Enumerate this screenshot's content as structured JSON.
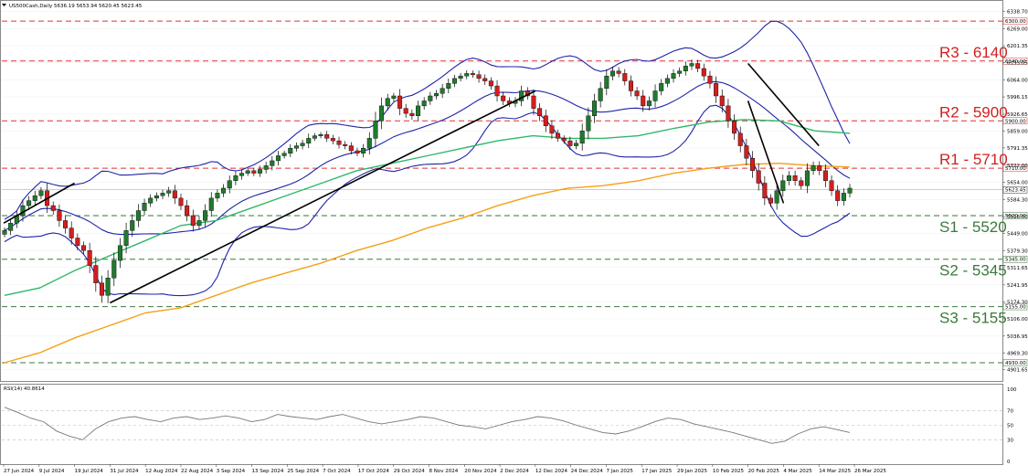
{
  "header": {
    "symbol_info": "US500Cash,Daily  5636.19 5653.94 5620.45 5623.45"
  },
  "rsi_panel": {
    "label": "RSI(14) 40.8614",
    "ticks": [
      "100",
      "70",
      "50",
      "30",
      "0"
    ]
  },
  "colors": {
    "bull": "#1f7a2e",
    "bear": "#d11f1f",
    "bollinger": "#1f24a8",
    "ma_100": "#2eb86a",
    "ma_200": "#f5a018",
    "resistance_line": "#e03030",
    "support_line": "#3a7a3a",
    "resistance_text": "#d11f1f",
    "support_text": "#3a7a3a",
    "trendline": "#000000"
  },
  "chart_data": {
    "type": "candlestick",
    "title": "US500Cash,Daily",
    "timeframe": "Daily",
    "last_ohlc": {
      "open": 5636.19,
      "high": 5653.94,
      "low": 5620.45,
      "close": 5623.45
    },
    "last_price_label": "5623.45",
    "ylim": [
      4875,
      6370
    ],
    "y_ticks": [
      "6338.70",
      "6269.00",
      "6201.35",
      "6133.05",
      "6064.00",
      "5996.15",
      "5926.65",
      "5859.00",
      "5791.35",
      "5722.00",
      "5654.00",
      "5584.30",
      "5516.00",
      "5449.00",
      "5379.30",
      "5311.65",
      "5241.95",
      "5174.30",
      "5106.00",
      "5036.95",
      "4969.30",
      "4901.65"
    ],
    "x_ticks": [
      "27 Jun 2024",
      "9 Jul 2024",
      "19 Jul 2024",
      "31 Jul 2024",
      "12 Aug 2024",
      "22 Aug 2024",
      "3 Sep 2024",
      "13 Sep 2024",
      "25 Sep 2024",
      "7 Oct 2024",
      "17 Oct 2024",
      "29 Oct 2024",
      "8 Nov 2024",
      "20 Nov 2024",
      "2 Dec 2024",
      "12 Dec 2024",
      "24 Dec 2024",
      "7 Jan 2025",
      "17 Jan 2025",
      "29 Jan 2025",
      "10 Feb 2025",
      "20 Feb 2025",
      "4 Mar 2025",
      "14 Mar 2025",
      "26 Mar 2025"
    ],
    "levels": [
      {
        "name": "R3 - 6140",
        "price": 6140,
        "kind": "resistance",
        "axis_label": "6140.00"
      },
      {
        "name": "R2 - 5900",
        "price": 5900,
        "kind": "resistance",
        "axis_label": "5900.00"
      },
      {
        "name": "R1 - 5710",
        "price": 5710,
        "kind": "resistance",
        "axis_label": "5710.00"
      },
      {
        "name": "S1 - 5520",
        "price": 5520,
        "kind": "support",
        "axis_label": "5520.00"
      },
      {
        "name": "S2 - 5345",
        "price": 5345,
        "kind": "support",
        "axis_label": "5345.00"
      },
      {
        "name": "S3 - 5155",
        "price": 5155,
        "kind": "support",
        "axis_label": "5155.00"
      }
    ],
    "extra_lines": [
      {
        "price": 6300,
        "axis_label": "6300.00",
        "kind": "resistance"
      },
      {
        "price": 4930,
        "axis_label": "4930.00",
        "kind": "support"
      }
    ],
    "price_path": [
      5460,
      5490,
      5520,
      5560,
      5580,
      5600,
      5620,
      5560,
      5540,
      5500,
      5470,
      5430,
      5400,
      5380,
      5320,
      5250,
      5200,
      5270,
      5340,
      5400,
      5460,
      5500,
      5540,
      5570,
      5590,
      5600,
      5610,
      5620,
      5590,
      5560,
      5520,
      5480,
      5500,
      5540,
      5590,
      5610,
      5630,
      5660,
      5680,
      5690,
      5700,
      5690,
      5705,
      5720,
      5740,
      5760,
      5770,
      5790,
      5800,
      5810,
      5830,
      5840,
      5845,
      5830,
      5820,
      5805,
      5800,
      5780,
      5770,
      5790,
      5830,
      5900,
      5960,
      5990,
      6000,
      5950,
      5930,
      5920,
      5960,
      5980,
      6000,
      6010,
      6030,
      6050,
      6070,
      6080,
      6090,
      6085,
      6070,
      6060,
      6040,
      6000,
      5980,
      5970,
      5980,
      6020,
      6000,
      5950,
      5920,
      5880,
      5850,
      5830,
      5820,
      5800,
      5810,
      5860,
      5920,
      5980,
      6030,
      6080,
      6100,
      6090,
      6060,
      6020,
      6000,
      5960,
      5980,
      6020,
      6050,
      6070,
      6090,
      6100,
      6120,
      6130,
      6110,
      6080,
      6050,
      6000,
      5960,
      5900,
      5850,
      5800,
      5750,
      5700,
      5650,
      5590,
      5570,
      5620,
      5660,
      5680,
      5660,
      5640,
      5700,
      5720,
      5700,
      5660,
      5620,
      5580,
      5610,
      5630
    ],
    "ma_100": [
      5200,
      5230,
      5300,
      5360,
      5420,
      5480,
      5500,
      5550,
      5600,
      5650,
      5700,
      5730,
      5760,
      5790,
      5820,
      5840,
      5830,
      5830,
      5840,
      5870,
      5895,
      5905,
      5900,
      5860,
      5850
    ],
    "ma_200": [
      4930,
      4970,
      5030,
      5080,
      5130,
      5150,
      5200,
      5250,
      5290,
      5330,
      5380,
      5420,
      5470,
      5510,
      5560,
      5600,
      5630,
      5640,
      5660,
      5690,
      5710,
      5725,
      5730,
      5720,
      5715
    ],
    "trendlines": [
      {
        "from": [
          "27 Jun 2024",
          5490
        ],
        "to": [
          "19 Jul 2024",
          5650
        ]
      },
      {
        "from": [
          "31 Jul 2024",
          5170
        ],
        "to": [
          "12 Dec 2024",
          6020
        ]
      },
      {
        "from": [
          "20 Feb 2025",
          6130
        ],
        "to": [
          "14 Mar 2025",
          5800
        ]
      },
      {
        "from": [
          "20 Feb 2025",
          5980
        ],
        "to": [
          "4 Mar 2025",
          5570
        ]
      }
    ],
    "rsi": {
      "period": 14,
      "last": 40.8614,
      "ylim": [
        0,
        100
      ],
      "levels": [
        70,
        50,
        30
      ],
      "values": [
        75,
        68,
        60,
        55,
        42,
        35,
        30,
        45,
        55,
        60,
        62,
        58,
        55,
        60,
        62,
        58,
        60,
        63,
        60,
        55,
        58,
        65,
        62,
        60,
        58,
        62,
        65,
        60,
        55,
        52,
        55,
        58,
        62,
        60,
        55,
        50,
        48,
        45,
        50,
        55,
        58,
        62,
        60,
        56,
        50,
        45,
        40,
        38,
        42,
        48,
        55,
        60,
        58,
        52,
        48,
        44,
        40,
        35,
        30,
        25,
        28,
        38,
        45,
        48,
        44,
        40
      ]
    }
  }
}
